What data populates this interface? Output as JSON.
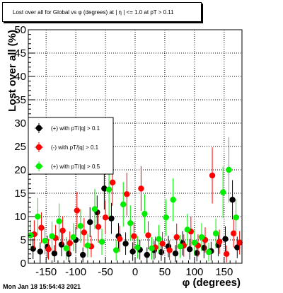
{
  "title": "Lost over all for Global vs φ (degrees) at | η | <= 1.0 at pT > 0.11",
  "timestamp": "Mon Jan 18 15:54:43 2021",
  "chart_data": {
    "type": "scatter",
    "xlabel": "φ (degrees)",
    "ylabel": "Lost over all (%)",
    "xlim": [
      -180,
      180
    ],
    "ylim": [
      0,
      50
    ],
    "x_ticks": [
      -150,
      -100,
      -50,
      0,
      50,
      100,
      150
    ],
    "y_ticks": [
      0,
      5,
      10,
      15,
      20,
      25,
      30,
      35,
      40,
      45,
      50
    ],
    "grid": true,
    "legend_position": "middle-left",
    "series": [
      {
        "name": "(+) with pT/|q| > 0.1",
        "color": "#000000",
        "points": [
          [
            -172,
            3.1,
            2.2
          ],
          [
            -160,
            2.5,
            2.0
          ],
          [
            -148,
            3.5,
            2.4
          ],
          [
            -136,
            2.1,
            1.8
          ],
          [
            -124,
            4.0,
            2.5
          ],
          [
            -112,
            2.0,
            1.7
          ],
          [
            -100,
            5.0,
            2.8
          ],
          [
            -88,
            1.8,
            1.6
          ],
          [
            -76,
            8.8,
            3.2
          ],
          [
            -64,
            10.9,
            3.6
          ],
          [
            -52,
            16.0,
            4.5
          ],
          [
            -40,
            9.6,
            3.3
          ],
          [
            -28,
            5.8,
            2.8
          ],
          [
            -16,
            4.2,
            2.4
          ],
          [
            -4,
            2.5,
            2.0
          ],
          [
            8,
            2.9,
            2.1
          ],
          [
            20,
            1.8,
            1.6
          ],
          [
            32,
            2.8,
            2.0
          ],
          [
            44,
            2.4,
            1.9
          ],
          [
            56,
            3.6,
            2.3
          ],
          [
            68,
            2.1,
            1.8
          ],
          [
            80,
            4.3,
            2.6
          ],
          [
            92,
            3.0,
            2.2
          ],
          [
            104,
            2.2,
            1.8
          ],
          [
            116,
            3.3,
            2.2
          ],
          [
            128,
            2.6,
            2.0
          ],
          [
            140,
            3.9,
            2.4
          ],
          [
            152,
            5.2,
            2.7
          ],
          [
            164,
            13.6,
            4.2
          ],
          [
            172,
            3.4,
            2.3
          ]
        ]
      },
      {
        "name": "(-) with pT/|q| > 0.1",
        "color": "#ff0000",
        "points": [
          [
            -170,
            6.2,
            3.0
          ],
          [
            -158,
            7.6,
            3.3
          ],
          [
            -146,
            3.0,
            2.2
          ],
          [
            -134,
            5.4,
            2.8
          ],
          [
            -122,
            7.0,
            3.1
          ],
          [
            -110,
            4.3,
            2.5
          ],
          [
            -98,
            11.3,
            4.0
          ],
          [
            -86,
            6.6,
            3.1
          ],
          [
            -74,
            3.6,
            2.3
          ],
          [
            -62,
            7.8,
            3.4
          ],
          [
            -50,
            9.8,
            3.6
          ],
          [
            -38,
            17.3,
            5.0
          ],
          [
            -26,
            5.2,
            2.8
          ],
          [
            -14,
            14.8,
            4.6
          ],
          [
            -2,
            5.8,
            3.0
          ],
          [
            10,
            16.0,
            4.8
          ],
          [
            22,
            6.0,
            3.0
          ],
          [
            34,
            3.4,
            2.3
          ],
          [
            46,
            4.2,
            2.5
          ],
          [
            58,
            2.8,
            2.1
          ],
          [
            70,
            5.6,
            2.9
          ],
          [
            82,
            3.8,
            2.4
          ],
          [
            94,
            6.8,
            3.2
          ],
          [
            106,
            3.8,
            2.4
          ],
          [
            118,
            5.0,
            2.7
          ],
          [
            130,
            18.8,
            6.0
          ],
          [
            142,
            4.6,
            2.6
          ],
          [
            154,
            2.0,
            1.8
          ],
          [
            166,
            6.4,
            3.0
          ],
          [
            176,
            4.4,
            2.5
          ]
        ]
      },
      {
        "name": "(+) with pT/|q| > 0.5",
        "color": "#00ee00",
        "points": [
          [
            -176,
            6.0,
            3.2
          ],
          [
            -164,
            10.0,
            4.0
          ],
          [
            -152,
            4.8,
            2.9
          ],
          [
            -140,
            5.8,
            3.1
          ],
          [
            -128,
            9.0,
            3.8
          ],
          [
            -116,
            3.2,
            2.4
          ],
          [
            -104,
            5.6,
            3.0
          ],
          [
            -92,
            8.0,
            3.6
          ],
          [
            -80,
            3.8,
            2.5
          ],
          [
            -68,
            11.6,
            4.3
          ],
          [
            -56,
            4.6,
            2.8
          ],
          [
            -44,
            15.8,
            6.0
          ],
          [
            -32,
            2.8,
            2.2
          ],
          [
            -20,
            12.6,
            4.8
          ],
          [
            -8,
            8.6,
            3.8
          ],
          [
            4,
            3.4,
            2.4
          ],
          [
            16,
            10.6,
            4.2
          ],
          [
            28,
            3.2,
            2.4
          ],
          [
            40,
            5.2,
            3.0
          ],
          [
            52,
            9.8,
            3.9
          ],
          [
            64,
            13.6,
            4.6
          ],
          [
            76,
            3.6,
            2.5
          ],
          [
            88,
            7.2,
            3.4
          ],
          [
            100,
            4.4,
            2.7
          ],
          [
            112,
            5.6,
            3.0
          ],
          [
            124,
            2.4,
            2.0
          ],
          [
            136,
            6.4,
            3.2
          ],
          [
            148,
            15.2,
            5.5
          ],
          [
            158,
            20.0,
            7.0
          ],
          [
            170,
            9.8,
            3.9
          ]
        ]
      }
    ]
  }
}
